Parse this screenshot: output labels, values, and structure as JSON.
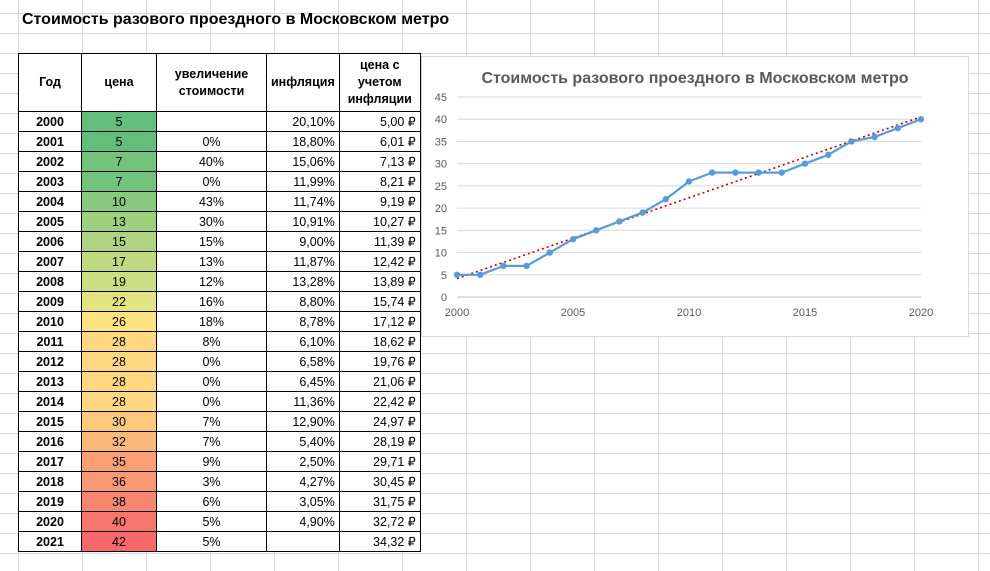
{
  "sheet": {
    "title": "Стоимость разового проездного в Московском метро"
  },
  "table": {
    "headers": [
      "Год",
      "цена",
      "увеличение стоимости",
      "инфляция",
      "цена с учетом инфляции"
    ],
    "rows": [
      {
        "year": "2000",
        "price": "5",
        "increase": "",
        "inflation": "20,10%",
        "adjusted": "5,00 ₽",
        "color": "#63be7b"
      },
      {
        "year": "2001",
        "price": "5",
        "increase": "0%",
        "inflation": "18,80%",
        "adjusted": "6,01 ₽",
        "color": "#63be7b"
      },
      {
        "year": "2002",
        "price": "7",
        "increase": "40%",
        "inflation": "15,06%",
        "adjusted": "7,13 ₽",
        "color": "#72c37c"
      },
      {
        "year": "2003",
        "price": "7",
        "increase": "0%",
        "inflation": "11,99%",
        "adjusted": "8,21 ₽",
        "color": "#72c37c"
      },
      {
        "year": "2004",
        "price": "10",
        "increase": "43%",
        "inflation": "11,74%",
        "adjusted": "9,19 ₽",
        "color": "#88c97d"
      },
      {
        "year": "2005",
        "price": "13",
        "increase": "30%",
        "inflation": "10,91%",
        "adjusted": "10,27 ₽",
        "color": "#9fd07e"
      },
      {
        "year": "2006",
        "price": "15",
        "increase": "15%",
        "inflation": "9,00%",
        "adjusted": "11,39 ₽",
        "color": "#aed47f"
      },
      {
        "year": "2007",
        "price": "17",
        "increase": "13%",
        "inflation": "11,87%",
        "adjusted": "12,42 ₽",
        "color": "#bed980"
      },
      {
        "year": "2008",
        "price": "19",
        "increase": "12%",
        "inflation": "13,28%",
        "adjusted": "13,89 ₽",
        "color": "#cddd81"
      },
      {
        "year": "2009",
        "price": "22",
        "increase": "16%",
        "inflation": "8,80%",
        "adjusted": "15,74 ₽",
        "color": "#e3e382"
      },
      {
        "year": "2010",
        "price": "26",
        "increase": "18%",
        "inflation": "8,78%",
        "adjusted": "17,12 ₽",
        "color": "#fde383"
      },
      {
        "year": "2011",
        "price": "28",
        "increase": "8%",
        "inflation": "6,10%",
        "adjusted": "18,62 ₽",
        "color": "#fed981"
      },
      {
        "year": "2012",
        "price": "28",
        "increase": "0%",
        "inflation": "6,58%",
        "adjusted": "19,76 ₽",
        "color": "#fed981"
      },
      {
        "year": "2013",
        "price": "28",
        "increase": "0%",
        "inflation": "6,45%",
        "adjusted": "21,06 ₽",
        "color": "#fed981"
      },
      {
        "year": "2014",
        "price": "28",
        "increase": "0%",
        "inflation": "11,36%",
        "adjusted": "22,42 ₽",
        "color": "#fed981"
      },
      {
        "year": "2015",
        "price": "30",
        "increase": "7%",
        "inflation": "12,90%",
        "adjusted": "24,97 ₽",
        "color": "#fdc97d"
      },
      {
        "year": "2016",
        "price": "32",
        "increase": "7%",
        "inflation": "5,40%",
        "adjusted": "28,19 ₽",
        "color": "#fbb979"
      },
      {
        "year": "2017",
        "price": "35",
        "increase": "9%",
        "inflation": "2,50%",
        "adjusted": "29,71 ₽",
        "color": "#faa074"
      },
      {
        "year": "2018",
        "price": "36",
        "increase": "3%",
        "inflation": "4,27%",
        "adjusted": "30,45 ₽",
        "color": "#f99873"
      },
      {
        "year": "2019",
        "price": "38",
        "increase": "6%",
        "inflation": "3,05%",
        "adjusted": "31,75 ₽",
        "color": "#f8866f"
      },
      {
        "year": "2020",
        "price": "40",
        "increase": "5%",
        "inflation": "4,90%",
        "adjusted": "32,72 ₽",
        "color": "#f8776c"
      },
      {
        "year": "2021",
        "price": "42",
        "increase": "5%",
        "inflation": "",
        "adjusted": "34,32 ₽",
        "color": "#f8696b"
      }
    ]
  },
  "chart_data": {
    "type": "line",
    "title": "Стоимость разового проездного в Московском метро",
    "x": [
      2000,
      2001,
      2002,
      2003,
      2004,
      2005,
      2006,
      2007,
      2008,
      2009,
      2010,
      2011,
      2012,
      2013,
      2014,
      2015,
      2016,
      2017,
      2018,
      2019,
      2020
    ],
    "series": [
      {
        "values": [
          5,
          5,
          7,
          7,
          10,
          13,
          15,
          17,
          19,
          22,
          26,
          28,
          28,
          28,
          28,
          30,
          32,
          35,
          36,
          38,
          40
        ],
        "color": "#5b9bd5"
      }
    ],
    "trendline": {
      "type": "linear",
      "color": "#c00000",
      "style": "dotted"
    },
    "xlim": [
      2000,
      2020
    ],
    "ylim": [
      0,
      45
    ],
    "xticks": [
      "2000",
      "2005",
      "2010",
      "2015",
      "2020"
    ],
    "yticks": [
      "0",
      "5",
      "10",
      "15",
      "20",
      "25",
      "30",
      "35",
      "40",
      "45"
    ],
    "grid": true,
    "legend": "none"
  }
}
